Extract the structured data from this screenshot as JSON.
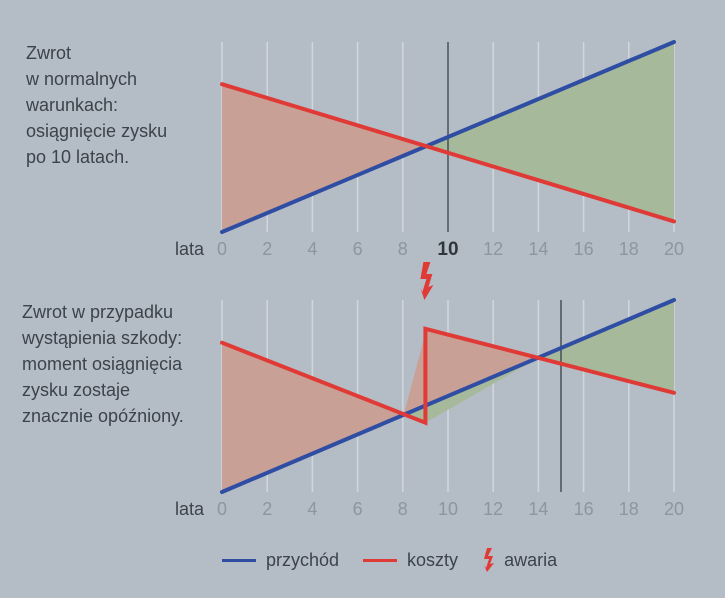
{
  "chart_data": [
    {
      "type": "line",
      "caption": "Zwrot\nw normalnych\nwarunkach:\nosiągnięcie zysku\npo 10 latach.",
      "xlabel": "lata",
      "x_ticks": [
        0,
        2,
        4,
        6,
        8,
        10,
        12,
        14,
        16,
        18,
        20
      ],
      "highlight_tick": 10,
      "xlim": [
        0,
        20
      ],
      "series": [
        {
          "key": "revenue",
          "x": [
            0,
            20
          ],
          "y": [
            -6,
            12
          ]
        },
        {
          "key": "costs",
          "x": [
            0,
            20
          ],
          "y": [
            8,
            -5
          ]
        }
      ],
      "marker_x": 10,
      "ylim": [
        -6,
        12
      ]
    },
    {
      "type": "line",
      "caption": "Zwrot w przypadku\nwystąpienia szkody:\nmoment osiągnięcia\nzysku zostaje\nznacznie opóźniony.",
      "xlabel": "lata",
      "x_ticks": [
        0,
        2,
        4,
        6,
        8,
        10,
        12,
        14,
        16,
        18,
        20
      ],
      "highlight_tick": null,
      "xlim": [
        0,
        20
      ],
      "series": [
        {
          "key": "revenue",
          "x": [
            0,
            20
          ],
          "y": [
            -6,
            12
          ]
        },
        {
          "key": "costs",
          "x": [
            0,
            9,
            9,
            20
          ],
          "y": [
            8,
            0.5,
            9.3,
            3.3
          ]
        }
      ],
      "failure_x": 9,
      "marker_x": 15,
      "ylim": [
        -6,
        12
      ]
    }
  ],
  "legend": [
    {
      "key": "revenue",
      "label": "przychód",
      "color": "#2e4da3",
      "icon": "line"
    },
    {
      "key": "costs",
      "label": "koszty",
      "color": "#e03a36",
      "icon": "line"
    },
    {
      "key": "failure",
      "label": "awaria",
      "color": "#e03a36",
      "icon": "lightning-icon"
    }
  ],
  "colors": {
    "revenue": "#2e4da3",
    "costs": "#e03a36",
    "loss_fill": "#c9a096",
    "profit_fill": "#a7b99b",
    "grid": "#d2d7dd",
    "marker": "#4e555d",
    "tick_label": "#8d959e",
    "tick_label_highlight": "#2f363d"
  }
}
